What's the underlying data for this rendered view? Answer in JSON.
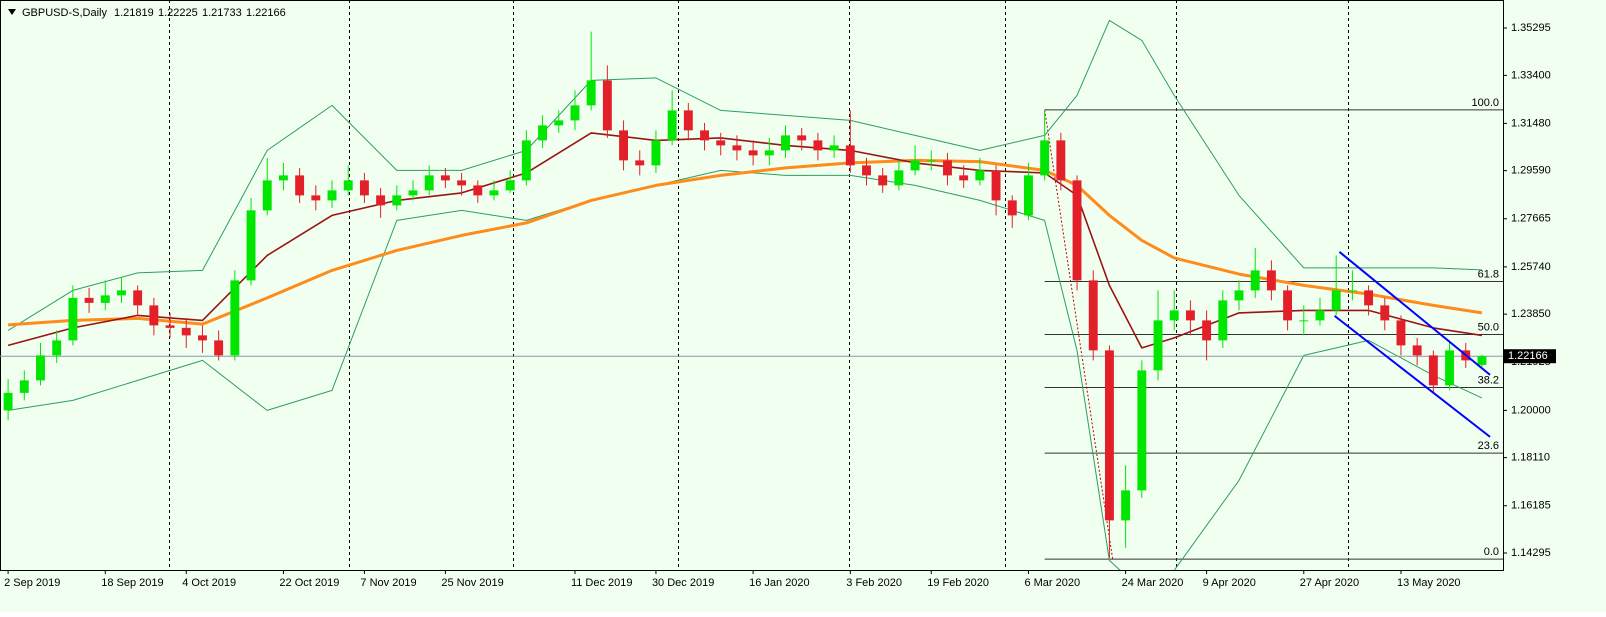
{
  "chart_data": {
    "type": "candlestick",
    "title": "GBPUSD-S,Daily",
    "up_color": "#00e600",
    "down_color": "#e3202a",
    "xlim": [
      -0.5,
      92.3
    ],
    "ylim": [
      1.13615,
      1.36415
    ],
    "xticks": [
      {
        "value": 0,
        "label": "2 Sep 2019"
      },
      {
        "value": 6,
        "label": "18 Sep 2019"
      },
      {
        "value": 11,
        "label": "4 Oct 2019"
      },
      {
        "value": 17,
        "label": "22 Oct 2019"
      },
      {
        "value": 22,
        "label": "7 Nov 2019"
      },
      {
        "value": 27,
        "label": "25 Nov 2019"
      },
      {
        "value": 35,
        "label": "11 Dec 2019"
      },
      {
        "value": 40,
        "label": "30 Dec 2019"
      },
      {
        "value": 46,
        "label": "16 Jan 2020"
      },
      {
        "value": 52,
        "label": "3 Feb 2020"
      },
      {
        "value": 57,
        "label": "19 Feb 2020"
      },
      {
        "value": 63,
        "label": "6 Mar 2020"
      },
      {
        "value": 69,
        "label": "24 Mar 2020"
      },
      {
        "value": 74,
        "label": "9 Apr 2020"
      },
      {
        "value": 80,
        "label": "27 Apr 2020"
      },
      {
        "value": 86,
        "label": "13 May 2020"
      }
    ],
    "yticks": [
      1.35295,
      {
        "value": 1.334,
        "label": "1.33400"
      },
      {
        "value": 1.3148,
        "label": "1.31480"
      },
      {
        "value": 1.2959,
        "label": "1.29590"
      },
      1.27665,
      {
        "value": 1.2574,
        "label": "1.25740"
      },
      {
        "value": 1.2385,
        "label": "1.23850"
      },
      1.21925,
      {
        "value": 1.2,
        "label": "1.20000"
      },
      {
        "value": 1.1811,
        "label": "1.18110"
      },
      1.16185,
      1.14295
    ],
    "open": [
      1.2,
      1.207,
      1.212,
      1.222,
      1.228,
      1.245,
      1.243,
      1.246,
      1.248,
      1.242,
      1.234,
      1.233,
      1.23,
      1.228,
      1.222,
      1.252,
      1.28,
      1.292,
      1.294,
      1.286,
      1.284,
      1.288,
      1.292,
      1.286,
      1.282,
      1.286,
      1.288,
      1.294,
      1.292,
      1.29,
      1.286,
      1.288,
      1.292,
      1.308,
      1.314,
      1.316,
      1.322,
      1.332,
      1.312,
      1.3,
      1.298,
      1.308,
      1.32,
      1.312,
      1.308,
      1.306,
      1.304,
      1.302,
      1.304,
      1.31,
      1.308,
      1.304,
      1.306,
      1.298,
      1.294,
      1.29,
      1.296,
      1.3,
      1.3,
      1.294,
      1.292,
      1.296,
      1.284,
      1.278,
      1.294,
      1.308,
      1.292,
      1.252,
      1.224,
      1.156,
      1.168,
      1.216,
      1.236,
      1.24,
      1.236,
      1.228,
      1.244,
      1.248,
      1.256,
      1.248,
      1.236,
      1.236,
      1.24,
      1.248,
      1.248,
      1.242,
      1.236,
      1.226,
      1.222,
      1.21,
      1.224,
      1.21819
    ],
    "high": [
      1.2125,
      1.216,
      1.227,
      1.232,
      1.25,
      1.249,
      1.252,
      1.253,
      1.25,
      1.245,
      1.239,
      1.237,
      1.234,
      1.232,
      1.256,
      1.285,
      1.301,
      1.299,
      1.297,
      1.29,
      1.292,
      1.298,
      1.295,
      1.289,
      1.29,
      1.292,
      1.298,
      1.297,
      1.295,
      1.292,
      1.292,
      1.296,
      1.312,
      1.318,
      1.32,
      1.328,
      1.3515,
      1.338,
      1.316,
      1.304,
      1.312,
      1.328,
      1.323,
      1.315,
      1.311,
      1.31,
      1.308,
      1.309,
      1.314,
      1.313,
      1.311,
      1.31,
      1.32,
      1.301,
      1.297,
      1.3,
      1.306,
      1.304,
      1.303,
      1.298,
      1.301,
      1.298,
      1.286,
      1.299,
      1.32,
      1.311,
      1.294,
      1.256,
      1.226,
      1.178,
      1.22,
      1.248,
      1.248,
      1.244,
      1.24,
      1.248,
      1.252,
      1.265,
      1.26,
      1.25,
      1.242,
      1.245,
      1.262,
      1.256,
      1.25,
      1.245,
      1.238,
      1.229,
      1.224,
      1.228,
      1.227,
      1.22225
    ],
    "low": [
      1.196,
      1.204,
      1.21,
      1.219,
      1.226,
      1.239,
      1.24,
      1.243,
      1.238,
      1.23,
      1.229,
      1.225,
      1.223,
      1.22,
      1.22,
      1.25,
      1.278,
      1.288,
      1.283,
      1.28,
      1.281,
      1.286,
      1.283,
      1.277,
      1.28,
      1.284,
      1.286,
      1.289,
      1.286,
      1.283,
      1.284,
      1.287,
      1.29,
      1.305,
      1.311,
      1.312,
      1.32,
      1.309,
      1.296,
      1.294,
      1.295,
      1.306,
      1.308,
      1.304,
      1.302,
      1.3,
      1.298,
      1.298,
      1.301,
      1.304,
      1.3,
      1.301,
      1.295,
      1.29,
      1.287,
      1.288,
      1.294,
      1.296,
      1.29,
      1.289,
      1.29,
      1.278,
      1.273,
      1.276,
      1.292,
      1.288,
      1.248,
      1.22,
      1.141,
      1.145,
      1.165,
      1.212,
      1.232,
      1.23,
      1.22,
      1.225,
      1.24,
      1.245,
      1.244,
      1.232,
      1.23,
      1.234,
      1.238,
      1.244,
      1.238,
      1.232,
      1.222,
      1.218,
      1.207,
      1.208,
      1.217,
      1.21733
    ],
    "close": [
      1.207,
      1.212,
      1.222,
      1.228,
      1.245,
      1.243,
      1.246,
      1.248,
      1.242,
      1.234,
      1.233,
      1.23,
      1.228,
      1.222,
      1.252,
      1.28,
      1.292,
      1.294,
      1.286,
      1.284,
      1.288,
      1.292,
      1.286,
      1.282,
      1.286,
      1.288,
      1.294,
      1.292,
      1.29,
      1.286,
      1.288,
      1.292,
      1.308,
      1.314,
      1.316,
      1.322,
      1.332,
      1.312,
      1.3,
      1.298,
      1.308,
      1.32,
      1.312,
      1.308,
      1.306,
      1.304,
      1.302,
      1.304,
      1.31,
      1.308,
      1.304,
      1.306,
      1.298,
      1.294,
      1.29,
      1.296,
      1.3,
      1.3,
      1.294,
      1.292,
      1.296,
      1.284,
      1.278,
      1.294,
      1.308,
      1.292,
      1.252,
      1.224,
      1.156,
      1.168,
      1.216,
      1.236,
      1.24,
      1.236,
      1.228,
      1.244,
      1.248,
      1.256,
      1.248,
      1.236,
      1.236,
      1.24,
      1.248,
      1.248,
      1.242,
      1.236,
      1.226,
      1.222,
      1.21,
      1.224,
      1.22,
      1.22166
    ],
    "lines": [
      {
        "color": "#2e9e5e",
        "x": [
          0,
          4,
          8,
          12,
          16,
          20,
          24,
          28,
          32,
          36,
          40,
          44,
          48,
          52,
          56,
          60,
          64,
          66,
          68,
          70,
          72,
          76,
          80,
          84,
          88,
          91
        ],
        "values": [
          1.232,
          1.248,
          1.255,
          1.256,
          1.304,
          1.322,
          1.296,
          1.296,
          1.304,
          1.332,
          1.333,
          1.32,
          1.318,
          1.316,
          1.31,
          1.304,
          1.31,
          1.326,
          1.356,
          1.348,
          1.326,
          1.286,
          1.257,
          1.257,
          1.257,
          1.2562
        ]
      },
      {
        "color": "#2e9e5e",
        "x": [
          0,
          4,
          8,
          12,
          16,
          20,
          24,
          28,
          32,
          36,
          40,
          44,
          48,
          52,
          56,
          60,
          64,
          66,
          68,
          70,
          72,
          76,
          80,
          84,
          88,
          91
        ],
        "values": [
          1.2,
          1.204,
          1.212,
          1.22,
          1.2,
          1.208,
          1.276,
          1.28,
          1.276,
          1.284,
          1.29,
          1.296,
          1.294,
          1.294,
          1.29,
          1.284,
          1.276,
          1.224,
          1.14,
          1.128,
          1.136,
          1.172,
          1.222,
          1.228,
          1.214,
          1.205
        ]
      },
      {
        "color": "#ff8c1a",
        "x": [
          0,
          4,
          8,
          12,
          16,
          20,
          24,
          28,
          32,
          36,
          40,
          44,
          48,
          52,
          56,
          60,
          64,
          66,
          68,
          70,
          72,
          76,
          80,
          84,
          88,
          91
        ],
        "values": [
          1.2342,
          1.236,
          1.2368,
          1.2345,
          1.245,
          1.256,
          1.264,
          1.27,
          1.275,
          1.284,
          1.29,
          1.294,
          1.297,
          1.299,
          1.3,
          1.2995,
          1.296,
          1.29,
          1.278,
          1.268,
          1.261,
          1.2545,
          1.25,
          1.2465,
          1.242,
          1.239
        ]
      },
      {
        "color": "#9a1414",
        "x": [
          0,
          4,
          8,
          12,
          16,
          20,
          24,
          28,
          32,
          36,
          40,
          44,
          48,
          52,
          56,
          60,
          64,
          66,
          68,
          70,
          72,
          76,
          80,
          84,
          88,
          91
        ],
        "values": [
          1.226,
          1.233,
          1.238,
          1.236,
          1.262,
          1.278,
          1.284,
          1.287,
          1.295,
          1.311,
          1.308,
          1.309,
          1.306,
          1.304,
          1.299,
          1.296,
          1.295,
          1.286,
          1.25,
          1.225,
          1.229,
          1.239,
          1.24,
          1.24,
          1.233,
          1.23
        ]
      }
    ],
    "fibonacci": {
      "x": [
        64,
        68.2
      ],
      "y": [
        1.3202,
        1.1405
      ],
      "levels": [
        {
          "value": 100,
          "label": "100.0"
        },
        61.8,
        {
          "value": 50,
          "label": "50.0"
        },
        38.2,
        23.6,
        {
          "value": 0,
          "label": "0.0"
        }
      ]
    },
    "trendlines": [
      {
        "color": "#0000ff",
        "x": [
          82.2,
          91.5
        ],
        "y": [
          1.2634,
          1.2142
        ]
      },
      {
        "color": "#0000ff",
        "x": [
          81.9,
          91.5
        ],
        "y": [
          1.2378,
          1.1894
        ]
      }
    ]
  }
}
